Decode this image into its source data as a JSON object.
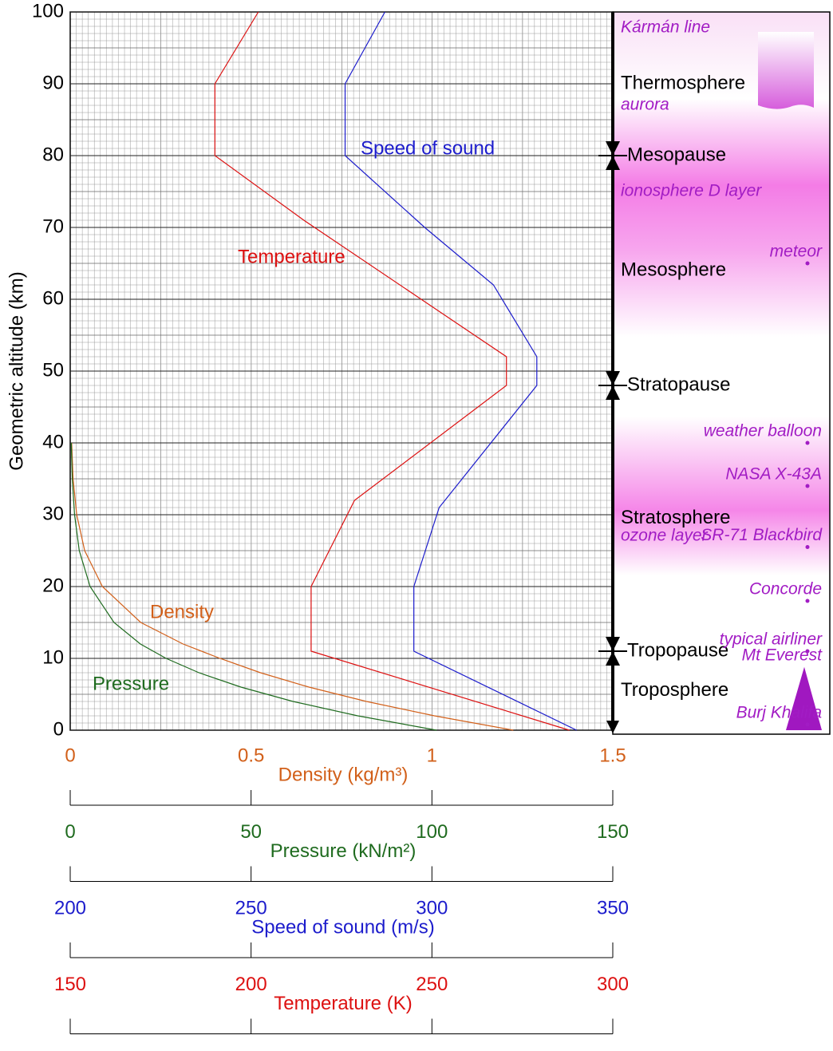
{
  "chart_data": {
    "type": "line",
    "ylabel": "Geometric altitude (km)",
    "ylim": [
      0,
      100
    ],
    "yticks": [
      0,
      10,
      20,
      30,
      40,
      50,
      60,
      70,
      80,
      90,
      100
    ],
    "grid": true,
    "x_axes": [
      {
        "label": "Density (kg/m³)",
        "color": "#d2601a",
        "xlim": [
          0,
          1.5
        ],
        "xticks": [
          0,
          0.5,
          1,
          1.5
        ]
      },
      {
        "label": "Pressure (kN/m²)",
        "color": "#1f6b1f",
        "xlim": [
          0,
          150
        ],
        "xticks": [
          0,
          50,
          100,
          150
        ]
      },
      {
        "label": "Speed of sound (m/s)",
        "color": "#1c1ccc",
        "xlim": [
          200,
          350
        ],
        "xticks": [
          200,
          250,
          300,
          350
        ]
      },
      {
        "label": "Temperature (K)",
        "color": "#dd1111",
        "xlim": [
          150,
          300
        ],
        "xticks": [
          150,
          200,
          250,
          300
        ]
      }
    ],
    "series": [
      {
        "name": "Temperature",
        "color": "#dd1111",
        "axis": 3,
        "altitude": [
          0,
          11,
          20,
          32,
          48,
          52,
          71,
          80,
          90,
          100
        ],
        "values": [
          288,
          216.6,
          216.6,
          228.6,
          270.6,
          270.6,
          214.6,
          190,
          190,
          202
        ]
      },
      {
        "name": "Speed of sound",
        "color": "#1c1ccc",
        "axis": 2,
        "altitude": [
          0,
          11,
          20,
          31,
          48,
          52,
          62,
          70,
          80,
          90,
          100
        ],
        "values": [
          340,
          295,
          295,
          302,
          329,
          329,
          317,
          298,
          276,
          276,
          287
        ]
      },
      {
        "name": "Density",
        "color": "#d2601a",
        "axis": 0,
        "altitude": [
          0,
          2,
          4,
          6,
          8,
          10,
          12,
          15,
          20,
          25,
          30,
          35,
          40
        ],
        "values": [
          1.225,
          1.007,
          0.819,
          0.66,
          0.526,
          0.414,
          0.312,
          0.195,
          0.089,
          0.04,
          0.018,
          0.008,
          0.004
        ]
      },
      {
        "name": "Pressure",
        "color": "#1f6b1f",
        "axis": 1,
        "altitude": [
          0,
          2,
          4,
          6,
          8,
          10,
          12,
          15,
          20,
          25,
          30,
          35,
          40
        ],
        "values": [
          101.3,
          79.5,
          61.6,
          47.2,
          35.6,
          26.5,
          19.4,
          12.1,
          5.5,
          2.5,
          1.2,
          0.57,
          0.29
        ]
      }
    ],
    "boundaries": [
      {
        "name": "Mesopause",
        "altitude": 80
      },
      {
        "name": "Stratopause",
        "altitude": 48
      },
      {
        "name": "Tropopause",
        "altitude": 11
      }
    ],
    "layers": [
      "Thermosphere",
      "Mesosphere",
      "Stratosphere",
      "Troposphere"
    ],
    "regions": [
      {
        "name": "Kármán line",
        "altitude": 100
      },
      {
        "name": "aurora",
        "altitude": 87
      },
      {
        "name": "ionosphere D layer",
        "altitude": 75
      },
      {
        "name": "ozone layer",
        "altitude": 27
      }
    ],
    "objects": [
      {
        "name": "meteor",
        "altitude": 65
      },
      {
        "name": "weather balloon",
        "altitude": 40
      },
      {
        "name": "NASA X-43A",
        "altitude": 34
      },
      {
        "name": "SR-71 Blackbird",
        "altitude": 25.5
      },
      {
        "name": "Concorde",
        "altitude": 18
      },
      {
        "name": "typical airliner",
        "altitude": 11
      },
      {
        "name": "Mt Everest",
        "altitude": 8.8
      },
      {
        "name": "Burj Khalifa",
        "altitude": 0.8
      }
    ]
  }
}
